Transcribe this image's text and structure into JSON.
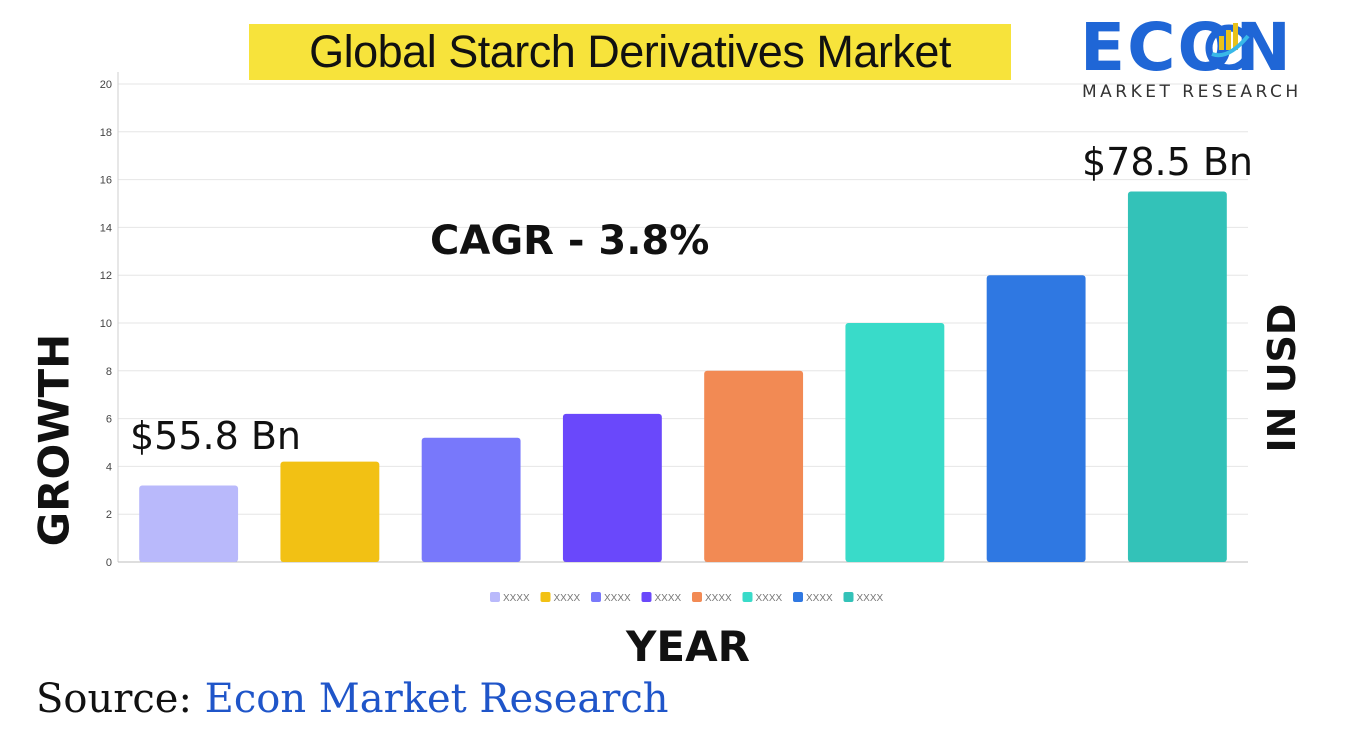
{
  "title": "Global Starch Derivatives Market",
  "logo": {
    "word": "ECON",
    "subtitle": "MARKET RESEARCH"
  },
  "annotations": {
    "first_value": "$55.8 Bn",
    "last_value": "$78.5 Bn",
    "cagr": "CAGR - 3.8%"
  },
  "source": {
    "prefix": "Source:",
    "name": "Econ Market Research"
  },
  "chart_data": {
    "type": "bar",
    "ylabel": "GROWTH",
    "y2label": "IN USD",
    "xlabel": "YEAR",
    "ylim": [
      0,
      20
    ],
    "yticks": [
      0,
      2,
      4,
      6,
      8,
      10,
      12,
      14,
      16,
      18,
      20
    ],
    "grid": true,
    "legend_placement": "bottom",
    "series": [
      {
        "name": "XXXX",
        "value": 3.2,
        "color": "#b9b9fb"
      },
      {
        "name": "XXXX",
        "value": 4.2,
        "color": "#f2c114"
      },
      {
        "name": "XXXX",
        "value": 5.2,
        "color": "#7878fb"
      },
      {
        "name": "XXXX",
        "value": 6.2,
        "color": "#6a48fb"
      },
      {
        "name": "XXXX",
        "value": 8.0,
        "color": "#f28a54"
      },
      {
        "name": "XXXX",
        "value": 10.0,
        "color": "#39dbc9"
      },
      {
        "name": "XXXX",
        "value": 12.0,
        "color": "#2f78e2"
      },
      {
        "name": "XXXX",
        "value": 15.5,
        "color": "#33c2b8"
      }
    ]
  }
}
